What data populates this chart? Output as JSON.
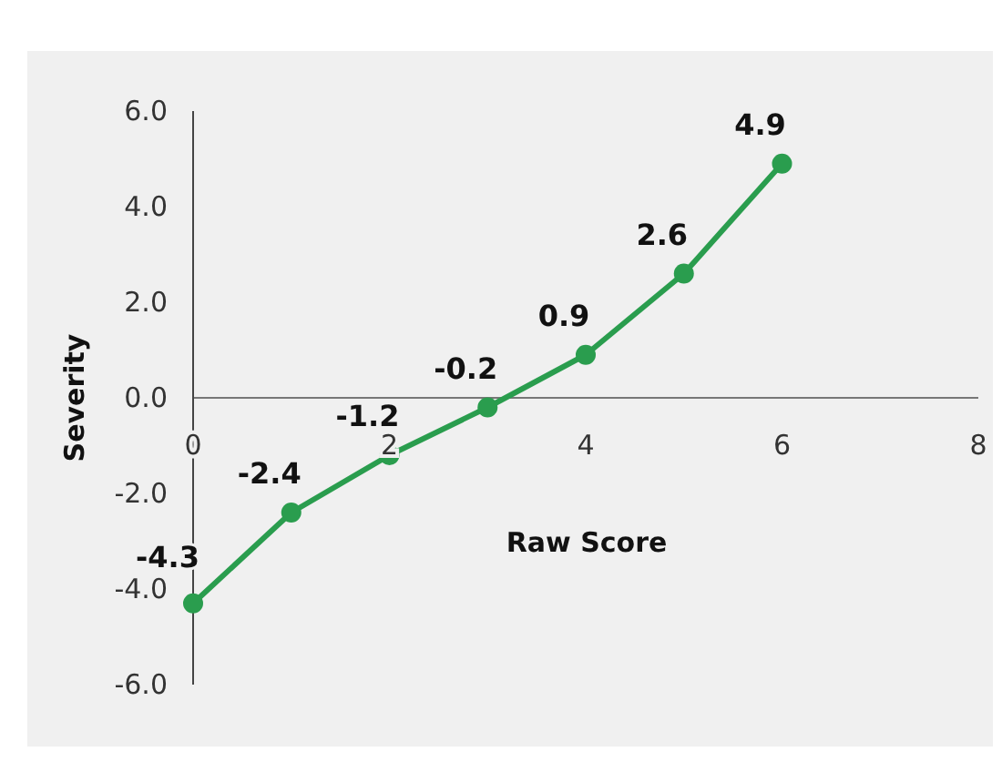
{
  "chart_data": {
    "type": "line",
    "xlabel": "Raw Score",
    "ylabel": "Severity",
    "x": [
      0,
      1,
      2,
      3,
      4,
      5,
      6
    ],
    "series": [
      {
        "color": "#2a9d4e",
        "values": [
          -4.3,
          -2.4,
          -1.2,
          -0.2,
          0.9,
          2.6,
          4.9
        ]
      }
    ],
    "xlim": [
      0,
      8
    ],
    "xticks": [
      0,
      2,
      4,
      6,
      8
    ],
    "ylim": [
      -6,
      6
    ],
    "yticks": [
      {
        "value": -6,
        "label": "-6.0"
      },
      {
        "value": -4,
        "label": "-4.0"
      },
      {
        "value": -2,
        "label": "-2.0"
      },
      {
        "value": 0,
        "label": "0.0"
      },
      {
        "value": 2,
        "label": "2.0"
      },
      {
        "value": 4,
        "label": "4.0"
      },
      {
        "value": 6,
        "label": "6.0"
      }
    ],
    "marker": "circle",
    "line_style": "solid",
    "data_labels": true,
    "grid": false
  }
}
